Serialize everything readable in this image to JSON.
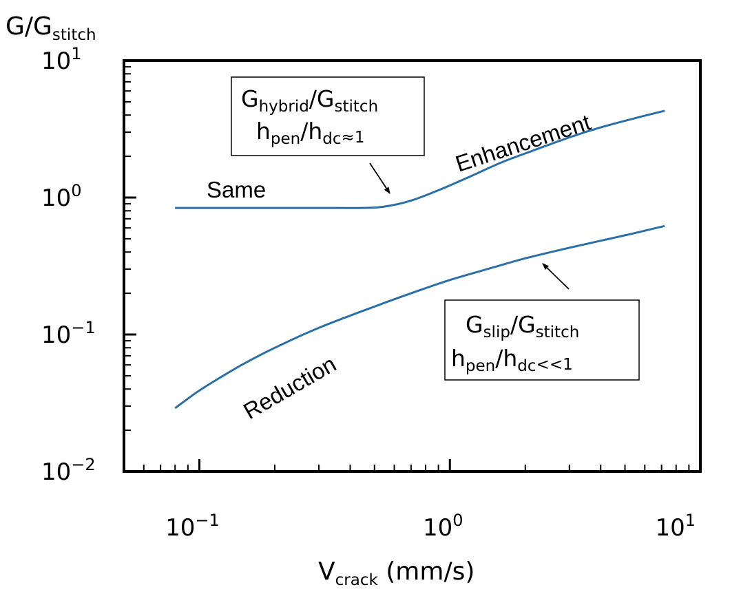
{
  "chart_data": {
    "type": "line",
    "title": "",
    "xlabel": {
      "main": "V",
      "sub": "crack",
      "unit": " (mm/s)"
    },
    "ylabel": {
      "main": "G/G",
      "sub": "stitch"
    },
    "x_scale": "log",
    "y_scale": "log",
    "xlim": [
      0.05,
      10
    ],
    "ylim": [
      0.01,
      10
    ],
    "x_ticks": [
      {
        "value": 0.1,
        "base": "10",
        "exp": "−1"
      },
      {
        "value": 1,
        "base": "10",
        "exp": "0"
      },
      {
        "value": 10,
        "base": "10",
        "exp": "1"
      }
    ],
    "y_ticks": [
      {
        "value": 0.01,
        "base": "10",
        "exp": "−2"
      },
      {
        "value": 0.1,
        "base": "10",
        "exp": "−1"
      },
      {
        "value": 1,
        "base": "10",
        "exp": "0"
      },
      {
        "value": 10,
        "base": "10",
        "exp": "1"
      }
    ],
    "grid": false,
    "line_color": "#2a6fa8",
    "series": [
      {
        "id": "hybrid",
        "x": [
          0.08,
          0.1,
          0.2,
          0.3,
          0.45,
          0.55,
          0.7,
          0.9,
          1.2,
          1.6,
          2,
          3,
          4,
          5.5,
          7.2
        ],
        "values": [
          0.84,
          0.84,
          0.84,
          0.84,
          0.84,
          0.86,
          0.95,
          1.13,
          1.42,
          1.8,
          2.1,
          2.75,
          3.25,
          3.8,
          4.3
        ]
      },
      {
        "id": "slip",
        "x": [
          0.08,
          0.09,
          0.1,
          0.12,
          0.15,
          0.2,
          0.3,
          0.5,
          0.7,
          1,
          1.5,
          2,
          3,
          5,
          7.2
        ],
        "values": [
          0.029,
          0.034,
          0.039,
          0.048,
          0.061,
          0.08,
          0.112,
          0.16,
          0.2,
          0.25,
          0.31,
          0.36,
          0.43,
          0.53,
          0.62
        ]
      }
    ],
    "annotations": {
      "same": "Same",
      "enhancement": "Enhancement",
      "reduction": "Reduction",
      "box_hybrid": {
        "line1_main": "G",
        "line1_sub": "hybrid",
        "line1_mid": "/G",
        "line1_sub2": "stitch",
        "line2_main": "h",
        "line2_sub": "pen",
        "line2_mid": "/h",
        "line2_sub2": "dc",
        "line2_tail": "≈1"
      },
      "box_slip": {
        "line1_main": "G",
        "line1_sub": "slip",
        "line1_mid": "/G",
        "line1_sub2": "stitch",
        "line2_main": "h",
        "line2_sub": "pen",
        "line2_mid": "/h",
        "line2_sub2": "dc",
        "line2_tail": "<<1"
      }
    }
  }
}
